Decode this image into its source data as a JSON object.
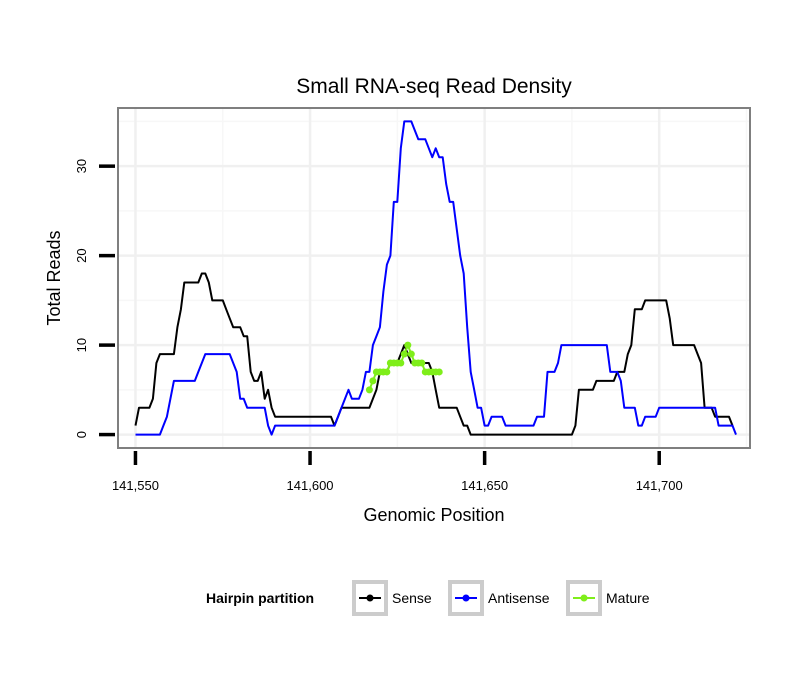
{
  "chart_data": {
    "type": "line",
    "title": "Small RNA-seq Read Density",
    "xlabel": "Genomic Position",
    "ylabel": "Total Reads",
    "xlim": [
      141545,
      141726
    ],
    "ylim": [
      -1.5,
      36.5
    ],
    "x_ticks": [
      141550,
      141600,
      141650,
      141700
    ],
    "x_tick_labels": [
      "141,550",
      "141,600",
      "141,650",
      "141,700"
    ],
    "y_ticks": [
      0,
      10,
      20,
      30
    ],
    "y_tick_labels": [
      "0",
      "10",
      "20",
      "30"
    ],
    "grid": true,
    "legend": {
      "title": "Hairpin partition",
      "position": "bottom",
      "entries": [
        "Sense",
        "Antisense",
        "Mature"
      ]
    },
    "series": [
      {
        "name": "Sense",
        "color": "#000000",
        "marker": "none",
        "points": [
          [
            141550,
            1
          ],
          [
            141551,
            3
          ],
          [
            141554,
            3
          ],
          [
            141555,
            4
          ],
          [
            141556,
            8
          ],
          [
            141557,
            9
          ],
          [
            141561,
            9
          ],
          [
            141562,
            12
          ],
          [
            141563,
            14
          ],
          [
            141564,
            17
          ],
          [
            141568,
            17
          ],
          [
            141569,
            18
          ],
          [
            141570,
            18
          ],
          [
            141571,
            17
          ],
          [
            141572,
            15
          ],
          [
            141575,
            15
          ],
          [
            141576,
            14
          ],
          [
            141577,
            13
          ],
          [
            141578,
            12
          ],
          [
            141580,
            12
          ],
          [
            141581,
            11
          ],
          [
            141582,
            11
          ],
          [
            141583,
            7
          ],
          [
            141584,
            6
          ],
          [
            141585,
            6
          ],
          [
            141586,
            7
          ],
          [
            141587,
            4
          ],
          [
            141588,
            5
          ],
          [
            141589,
            3
          ],
          [
            141590,
            2
          ],
          [
            141606,
            2
          ],
          [
            141607,
            1
          ],
          [
            141608,
            2
          ],
          [
            141609,
            3
          ],
          [
            141617,
            3
          ],
          [
            141618,
            4
          ],
          [
            141619,
            5
          ],
          [
            141620,
            7
          ],
          [
            141622,
            7
          ],
          [
            141623,
            8
          ],
          [
            141625,
            8
          ],
          [
            141626,
            9
          ],
          [
            141627,
            10
          ],
          [
            141628,
            9
          ],
          [
            141629,
            8
          ],
          [
            141634,
            8
          ],
          [
            141635,
            7
          ],
          [
            141636,
            5
          ],
          [
            141637,
            3
          ],
          [
            141642,
            3
          ],
          [
            141643,
            2
          ],
          [
            141644,
            1
          ],
          [
            141645,
            1
          ],
          [
            141646,
            0
          ],
          [
            141675,
            0
          ],
          [
            141676,
            1
          ],
          [
            141677,
            5
          ],
          [
            141681,
            5
          ],
          [
            141682,
            6
          ],
          [
            141687,
            6
          ],
          [
            141688,
            7
          ],
          [
            141690,
            7
          ],
          [
            141691,
            9
          ],
          [
            141692,
            10
          ],
          [
            141693,
            14
          ],
          [
            141695,
            14
          ],
          [
            141696,
            15
          ],
          [
            141702,
            15
          ],
          [
            141703,
            13
          ],
          [
            141704,
            10
          ],
          [
            141710,
            10
          ],
          [
            141711,
            9
          ],
          [
            141712,
            8
          ],
          [
            141713,
            3
          ],
          [
            141715,
            3
          ],
          [
            141716,
            2
          ],
          [
            141720,
            2
          ],
          [
            141721,
            1
          ]
        ]
      },
      {
        "name": "Antisense",
        "color": "#0000ff",
        "marker": "none",
        "points": [
          [
            141550,
            0
          ],
          [
            141557,
            0
          ],
          [
            141558,
            1
          ],
          [
            141559,
            2
          ],
          [
            141560,
            4
          ],
          [
            141561,
            6
          ],
          [
            141567,
            6
          ],
          [
            141568,
            7
          ],
          [
            141569,
            8
          ],
          [
            141570,
            9
          ],
          [
            141577,
            9
          ],
          [
            141578,
            8
          ],
          [
            141579,
            7
          ],
          [
            141580,
            4
          ],
          [
            141581,
            4
          ],
          [
            141582,
            3
          ],
          [
            141587,
            3
          ],
          [
            141588,
            1
          ],
          [
            141589,
            0
          ],
          [
            141590,
            1
          ],
          [
            141607,
            1
          ],
          [
            141608,
            2
          ],
          [
            141609,
            3
          ],
          [
            141610,
            4
          ],
          [
            141611,
            5
          ],
          [
            141612,
            4
          ],
          [
            141614,
            4
          ],
          [
            141615,
            5
          ],
          [
            141616,
            7
          ],
          [
            141617,
            7
          ],
          [
            141618,
            10
          ],
          [
            141619,
            11
          ],
          [
            141620,
            12
          ],
          [
            141621,
            16
          ],
          [
            141622,
            19
          ],
          [
            141623,
            20
          ],
          [
            141624,
            26
          ],
          [
            141625,
            26
          ],
          [
            141626,
            32
          ],
          [
            141627,
            35
          ],
          [
            141629,
            35
          ],
          [
            141630,
            34
          ],
          [
            141631,
            33
          ],
          [
            141633,
            33
          ],
          [
            141634,
            32
          ],
          [
            141635,
            31
          ],
          [
            141636,
            32
          ],
          [
            141637,
            31
          ],
          [
            141638,
            31
          ],
          [
            141639,
            28
          ],
          [
            141640,
            26
          ],
          [
            141641,
            26
          ],
          [
            141642,
            23
          ],
          [
            141643,
            20
          ],
          [
            141644,
            18
          ],
          [
            141645,
            12
          ],
          [
            141646,
            7
          ],
          [
            141647,
            5
          ],
          [
            141648,
            3
          ],
          [
            141649,
            3
          ],
          [
            141650,
            1
          ],
          [
            141651,
            1
          ],
          [
            141652,
            2
          ],
          [
            141655,
            2
          ],
          [
            141656,
            1
          ],
          [
            141664,
            1
          ],
          [
            141665,
            2
          ],
          [
            141667,
            2
          ],
          [
            141668,
            7
          ],
          [
            141670,
            7
          ],
          [
            141671,
            8
          ],
          [
            141672,
            10
          ],
          [
            141685,
            10
          ],
          [
            141686,
            7
          ],
          [
            141688,
            7
          ],
          [
            141689,
            6
          ],
          [
            141690,
            3
          ],
          [
            141693,
            3
          ],
          [
            141694,
            1
          ],
          [
            141695,
            1
          ],
          [
            141696,
            2
          ],
          [
            141699,
            2
          ],
          [
            141700,
            3
          ],
          [
            141716,
            3
          ],
          [
            141717,
            1
          ],
          [
            141721,
            1
          ],
          [
            141722,
            0
          ]
        ]
      },
      {
        "name": "Mature",
        "color": "#7fee1a",
        "marker": "circle",
        "points": [
          [
            141617,
            5
          ],
          [
            141618,
            6
          ],
          [
            141619,
            7
          ],
          [
            141620,
            7
          ],
          [
            141621,
            7
          ],
          [
            141622,
            7
          ],
          [
            141623,
            8
          ],
          [
            141624,
            8
          ],
          [
            141625,
            8
          ],
          [
            141626,
            8
          ],
          [
            141627,
            9
          ],
          [
            141628,
            10
          ],
          [
            141629,
            9
          ],
          [
            141630,
            8
          ],
          [
            141631,
            8
          ],
          [
            141632,
            8
          ],
          [
            141633,
            7
          ],
          [
            141634,
            7
          ],
          [
            141635,
            7
          ],
          [
            141636,
            7
          ],
          [
            141637,
            7
          ]
        ]
      }
    ]
  }
}
